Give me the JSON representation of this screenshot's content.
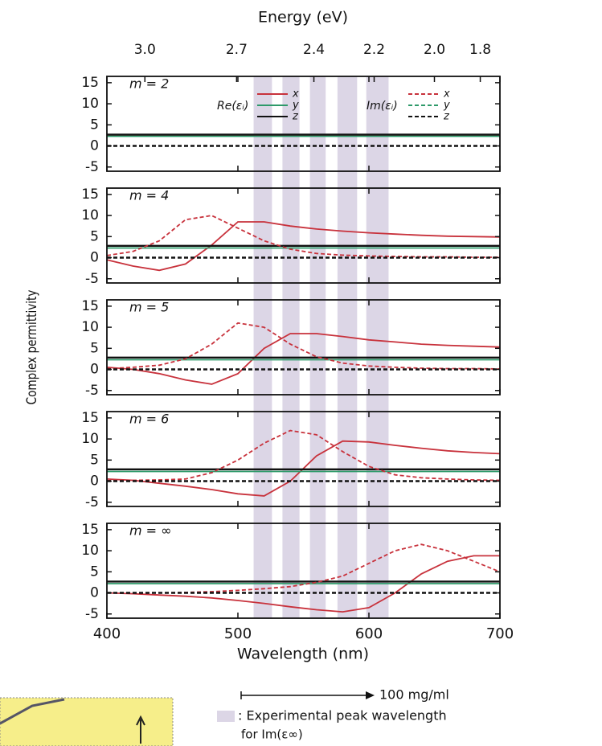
{
  "figure": {
    "top_axis_label": "Energy (eV)",
    "ylabel": "Complex permittivity",
    "xlabel": "Wavelength (nm)"
  },
  "experimental_peaks": {
    "ranges": [
      [
        512,
        526
      ],
      [
        534,
        547
      ],
      [
        555,
        567
      ],
      [
        576,
        591
      ],
      [
        598,
        615
      ]
    ],
    "color": "#dcd6e6",
    "scale_label": "100 mg/ml",
    "note": ": Experimental peak wavelength",
    "note2": "for Im(ε∞)"
  },
  "chart_data": [
    {
      "type": "line",
      "label": "m = 2",
      "legend_groups": [
        "Re(εᵢ)",
        "Im(εᵢ)"
      ],
      "x2ticks": [
        {
          "value": 429,
          "label": "3.0"
        },
        {
          "value": 499,
          "label": "2.7"
        },
        {
          "value": 558,
          "label": "2.4"
        },
        {
          "value": 604,
          "label": "2.2"
        },
        {
          "value": 650,
          "label": "2.0"
        },
        {
          "value": 685,
          "label": "1.8"
        }
      ],
      "xlim": [
        400,
        700
      ],
      "xticks": [
        400,
        500,
        600,
        700
      ],
      "ylim": [
        -6,
        16.5
      ],
      "yticks": [
        15,
        10,
        5,
        0,
        -5
      ],
      "x": [
        400,
        420,
        440,
        460,
        480,
        500,
        520,
        540,
        560,
        580,
        600,
        620,
        640,
        660,
        680,
        700
      ],
      "series": [
        {
          "name": "x",
          "color": "#c8323c",
          "dashed": false,
          "values": [
            2.5,
            2.5,
            2.5,
            2.5,
            2.5,
            2.5,
            2.5,
            2.5,
            2.5,
            2.5,
            2.5,
            2.5,
            2.5,
            2.5,
            2.5,
            2.5
          ]
        },
        {
          "name": "y",
          "color": "#2e9a6a",
          "dashed": false,
          "values": [
            2.3,
            2.3,
            2.3,
            2.3,
            2.3,
            2.3,
            2.3,
            2.3,
            2.3,
            2.3,
            2.3,
            2.3,
            2.3,
            2.3,
            2.3,
            2.3
          ]
        },
        {
          "name": "z",
          "color": "#111111",
          "dashed": false,
          "values": [
            2.7,
            2.7,
            2.7,
            2.7,
            2.7,
            2.7,
            2.7,
            2.7,
            2.7,
            2.7,
            2.7,
            2.7,
            2.7,
            2.7,
            2.7,
            2.7
          ]
        },
        {
          "name": "x",
          "color": "#c8323c",
          "dashed": true,
          "values": [
            0,
            0,
            0,
            0,
            0,
            0,
            0,
            0,
            0,
            0,
            0,
            0,
            0,
            0,
            0,
            0
          ]
        },
        {
          "name": "y",
          "color": "#2e9a6a",
          "dashed": true,
          "values": [
            0,
            0,
            0,
            0,
            0,
            0,
            0,
            0,
            0,
            0,
            0,
            0,
            0,
            0,
            0,
            0
          ]
        },
        {
          "name": "z",
          "color": "#111111",
          "dashed": true,
          "values": [
            0,
            0,
            0,
            0,
            0,
            0,
            0,
            0,
            0,
            0,
            0,
            0,
            0,
            0,
            0,
            0
          ]
        }
      ]
    },
    {
      "type": "line",
      "label": "m = 4",
      "xlim": [
        400,
        700
      ],
      "xticks": [
        400,
        500,
        600,
        700
      ],
      "ylim": [
        -6,
        16.5
      ],
      "yticks": [
        15,
        10,
        5,
        0,
        -5
      ],
      "x": [
        400,
        420,
        440,
        460,
        480,
        500,
        520,
        540,
        560,
        580,
        600,
        620,
        640,
        660,
        680,
        700
      ],
      "series": [
        {
          "name": "x",
          "color": "#c8323c",
          "dashed": false,
          "values": [
            -0.5,
            -2,
            -3,
            -1.5,
            3,
            8.5,
            8.5,
            7.5,
            6.8,
            6.3,
            5.9,
            5.6,
            5.3,
            5.1,
            5.0,
            4.9
          ]
        },
        {
          "name": "y",
          "color": "#2e9a6a",
          "dashed": false,
          "values": [
            2.3,
            2.3,
            2.3,
            2.3,
            2.3,
            2.3,
            2.3,
            2.3,
            2.3,
            2.3,
            2.3,
            2.3,
            2.3,
            2.3,
            2.3,
            2.3
          ]
        },
        {
          "name": "z",
          "color": "#111111",
          "dashed": false,
          "values": [
            2.8,
            2.8,
            2.8,
            2.8,
            2.8,
            2.8,
            2.8,
            2.8,
            2.8,
            2.8,
            2.8,
            2.8,
            2.8,
            2.8,
            2.8,
            2.8
          ]
        },
        {
          "name": "x",
          "color": "#c8323c",
          "dashed": true,
          "values": [
            0.5,
            1.5,
            4,
            9,
            10,
            7,
            4,
            2,
            1,
            0.6,
            0.4,
            0.3,
            0.2,
            0.2,
            0.1,
            0.1
          ]
        },
        {
          "name": "y",
          "color": "#2e9a6a",
          "dashed": true,
          "values": [
            0,
            0,
            0,
            0,
            0,
            0,
            0,
            0,
            0,
            0,
            0,
            0,
            0,
            0,
            0,
            0
          ]
        },
        {
          "name": "z",
          "color": "#111111",
          "dashed": true,
          "values": [
            0,
            0,
            0,
            0,
            0,
            0,
            0,
            0,
            0,
            0,
            0,
            0,
            0,
            0,
            0,
            0
          ]
        }
      ]
    },
    {
      "type": "line",
      "label": "m = 5",
      "xlim": [
        400,
        700
      ],
      "xticks": [
        400,
        500,
        600,
        700
      ],
      "ylim": [
        -6,
        16.5
      ],
      "yticks": [
        15,
        10,
        5,
        0,
        -5
      ],
      "x": [
        400,
        420,
        440,
        460,
        480,
        500,
        520,
        540,
        560,
        580,
        600,
        620,
        640,
        660,
        680,
        700
      ],
      "series": [
        {
          "name": "x",
          "color": "#c8323c",
          "dashed": false,
          "values": [
            0.5,
            0,
            -1,
            -2.5,
            -3.5,
            -1,
            5,
            8.5,
            8.5,
            7.8,
            7,
            6.5,
            6,
            5.7,
            5.5,
            5.3
          ]
        },
        {
          "name": "y",
          "color": "#2e9a6a",
          "dashed": false,
          "values": [
            2.3,
            2.3,
            2.3,
            2.3,
            2.3,
            2.3,
            2.3,
            2.3,
            2.3,
            2.3,
            2.3,
            2.3,
            2.3,
            2.3,
            2.3,
            2.3
          ]
        },
        {
          "name": "z",
          "color": "#111111",
          "dashed": false,
          "values": [
            2.8,
            2.8,
            2.8,
            2.8,
            2.8,
            2.8,
            2.8,
            2.8,
            2.8,
            2.8,
            2.8,
            2.8,
            2.8,
            2.8,
            2.8,
            2.8
          ]
        },
        {
          "name": "x",
          "color": "#c8323c",
          "dashed": true,
          "values": [
            0.2,
            0.5,
            1,
            2.5,
            6,
            11,
            10,
            6,
            3,
            1.5,
            0.8,
            0.5,
            0.3,
            0.2,
            0.2,
            0.1
          ]
        },
        {
          "name": "y",
          "color": "#2e9a6a",
          "dashed": true,
          "values": [
            0,
            0,
            0,
            0,
            0,
            0,
            0,
            0,
            0,
            0,
            0,
            0,
            0,
            0,
            0,
            0
          ]
        },
        {
          "name": "z",
          "color": "#111111",
          "dashed": true,
          "values": [
            0,
            0,
            0,
            0,
            0,
            0,
            0,
            0,
            0,
            0,
            0,
            0,
            0,
            0,
            0,
            0
          ]
        }
      ]
    },
    {
      "type": "line",
      "label": "m = 6",
      "xlim": [
        400,
        700
      ],
      "xticks": [
        400,
        500,
        600,
        700
      ],
      "ylim": [
        -6,
        16.5
      ],
      "yticks": [
        15,
        10,
        5,
        0,
        -5
      ],
      "x": [
        400,
        420,
        440,
        460,
        480,
        500,
        520,
        540,
        560,
        580,
        600,
        620,
        640,
        660,
        680,
        700
      ],
      "series": [
        {
          "name": "x",
          "color": "#c8323c",
          "dashed": false,
          "values": [
            0.5,
            0.2,
            -0.5,
            -1.2,
            -2,
            -3,
            -3.5,
            0,
            6,
            9.5,
            9.3,
            8.5,
            7.8,
            7.2,
            6.8,
            6.5
          ]
        },
        {
          "name": "y",
          "color": "#2e9a6a",
          "dashed": false,
          "values": [
            2.3,
            2.3,
            2.3,
            2.3,
            2.3,
            2.3,
            2.3,
            2.3,
            2.3,
            2.3,
            2.3,
            2.3,
            2.3,
            2.3,
            2.3,
            2.3
          ]
        },
        {
          "name": "z",
          "color": "#111111",
          "dashed": false,
          "values": [
            2.8,
            2.8,
            2.8,
            2.8,
            2.8,
            2.8,
            2.8,
            2.8,
            2.8,
            2.8,
            2.8,
            2.8,
            2.8,
            2.8,
            2.8,
            2.8
          ]
        },
        {
          "name": "x",
          "color": "#c8323c",
          "dashed": true,
          "values": [
            0.1,
            0.2,
            0.3,
            0.5,
            2,
            5,
            9,
            12,
            11,
            7,
            3.5,
            1.5,
            0.8,
            0.5,
            0.3,
            0.2
          ]
        },
        {
          "name": "y",
          "color": "#2e9a6a",
          "dashed": true,
          "values": [
            0,
            0,
            0,
            0,
            0,
            0,
            0,
            0,
            0,
            0,
            0,
            0,
            0,
            0,
            0,
            0
          ]
        },
        {
          "name": "z",
          "color": "#111111",
          "dashed": true,
          "values": [
            0,
            0,
            0,
            0,
            0,
            0,
            0,
            0,
            0,
            0,
            0,
            0,
            0,
            0,
            0,
            0
          ]
        }
      ]
    },
    {
      "type": "line",
      "label": "m = ∞",
      "xlim": [
        400,
        700
      ],
      "xticks": [
        400,
        500,
        600,
        700
      ],
      "ylim": [
        -6,
        16.5
      ],
      "yticks": [
        15,
        10,
        5,
        0,
        -5
      ],
      "x": [
        400,
        420,
        440,
        460,
        480,
        500,
        520,
        540,
        560,
        580,
        600,
        620,
        640,
        660,
        680,
        700
      ],
      "series": [
        {
          "name": "x",
          "color": "#c8323c",
          "dashed": false,
          "values": [
            0,
            -0.2,
            -0.5,
            -0.8,
            -1.2,
            -1.8,
            -2.5,
            -3.3,
            -4,
            -4.5,
            -3.5,
            0,
            4.5,
            7.5,
            8.8,
            8.8
          ]
        },
        {
          "name": "y",
          "color": "#2e9a6a",
          "dashed": false,
          "values": [
            2.2,
            2.2,
            2.2,
            2.2,
            2.2,
            2.2,
            2.2,
            2.2,
            2.2,
            2.2,
            2.2,
            2.2,
            2.2,
            2.2,
            2.2,
            2.2
          ]
        },
        {
          "name": "z",
          "color": "#111111",
          "dashed": false,
          "values": [
            2.7,
            2.7,
            2.7,
            2.7,
            2.7,
            2.7,
            2.7,
            2.7,
            2.7,
            2.7,
            2.7,
            2.7,
            2.7,
            2.7,
            2.7,
            2.7
          ]
        },
        {
          "name": "x",
          "color": "#c8323c",
          "dashed": true,
          "values": [
            0,
            0,
            0,
            0.1,
            0.3,
            0.6,
            1,
            1.5,
            2.5,
            4,
            7,
            10,
            11.5,
            10,
            7.5,
            5
          ]
        },
        {
          "name": "y",
          "color": "#2e9a6a",
          "dashed": true,
          "values": [
            0,
            0,
            0,
            0,
            0,
            0,
            0,
            0,
            0,
            0,
            0,
            0,
            0,
            0,
            0,
            0
          ]
        },
        {
          "name": "z",
          "color": "#111111",
          "dashed": true,
          "values": [
            0,
            0,
            0,
            0,
            0,
            0,
            0,
            0,
            0,
            0,
            0,
            0,
            0,
            0,
            0,
            0
          ]
        }
      ]
    }
  ]
}
